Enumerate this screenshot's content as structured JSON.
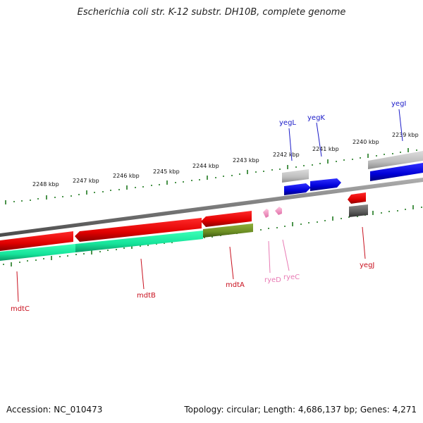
{
  "title": "Escherichia coli str. K-12 substr. DH10B, complete genome",
  "footer": {
    "accession": "Accession: NC_010473",
    "summary": "Topology: circular; Length: 4,686,137 bp; Genes: 4,271"
  },
  "scale": {
    "labels": [
      "2248 kbp",
      "2247 kbp",
      "2246 kbp",
      "2245 kbp",
      "2244 kbp",
      "2243 kbp",
      "2242 kbp",
      "2241 kbp",
      "2240 kbp",
      "2239 kbp"
    ]
  },
  "genes": [
    {
      "name": "yegI",
      "color": "#1a1ac8"
    },
    {
      "name": "yegK",
      "color": "#1a1ac8"
    },
    {
      "name": "yegL",
      "color": "#1a1ac8"
    },
    {
      "name": "yegJ",
      "color": "#c8101e"
    },
    {
      "name": "mdtA",
      "color": "#c8101e"
    },
    {
      "name": "mdtB",
      "color": "#c8101e"
    },
    {
      "name": "mdtC",
      "color": "#c8101e"
    },
    {
      "name": "ryeD",
      "color": "#e87ab4"
    },
    {
      "name": "ryeC",
      "color": "#e87ab4"
    }
  ],
  "colors": {
    "backbone": "#808080",
    "tick": "#1f7a1f",
    "cds_forward": "#0000ee",
    "cds_reverse": "#ee0000",
    "gene_forward": "#c0c0c0",
    "gene_reverse": "#5a5a5a",
    "operon": "#1fe6a0",
    "operon_dark": "#6b8e23",
    "ncrna": "#f7a8cc"
  }
}
